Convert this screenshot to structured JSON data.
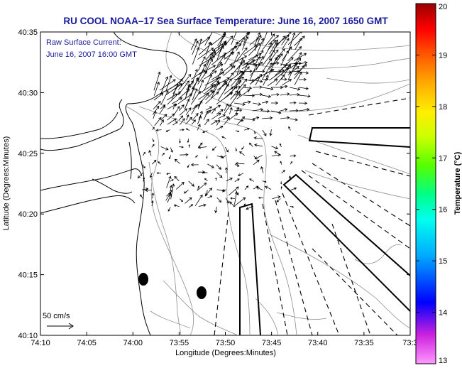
{
  "chart_data": {
    "type": "vector-field-map",
    "title": "RU COOL   NOAA–17  Sea Surface Temperature:  June 16, 2007 1650 GMT",
    "annotation": [
      "Raw Surface Current:",
      "June 16, 2007 16:00 GMT"
    ],
    "xlabel": "Longitude (Degrees:Minutes)",
    "ylabel": "Latitude (Degrees:Minutes)",
    "x_ticks": [
      "74:10",
      "74:05",
      "74:00",
      "73:55",
      "73:50",
      "73:45",
      "73:40",
      "73:35",
      "73:3"
    ],
    "y_ticks": [
      "40:10",
      "40:15",
      "40:20",
      "40:25",
      "40:30",
      "40:35"
    ],
    "xlim_minutes_west": [
      10,
      -3
    ],
    "ylim_minutes_north": [
      10,
      35
    ],
    "scale_label": "50 cm/s",
    "colorbar": {
      "label": "Temperature (°C)",
      "min": 13,
      "max": 20,
      "ticks": [
        "13",
        "14",
        "15",
        "16",
        "17",
        "18",
        "19",
        "20"
      ],
      "colormap": [
        "#ff99ff",
        "#cc22dd",
        "#0000ff",
        "#00aaff",
        "#00ffee",
        "#00ff88",
        "#55ff00",
        "#ccff00",
        "#ffee00",
        "#ffaa00",
        "#ff5500",
        "#ff0000",
        "#990000"
      ]
    }
  }
}
